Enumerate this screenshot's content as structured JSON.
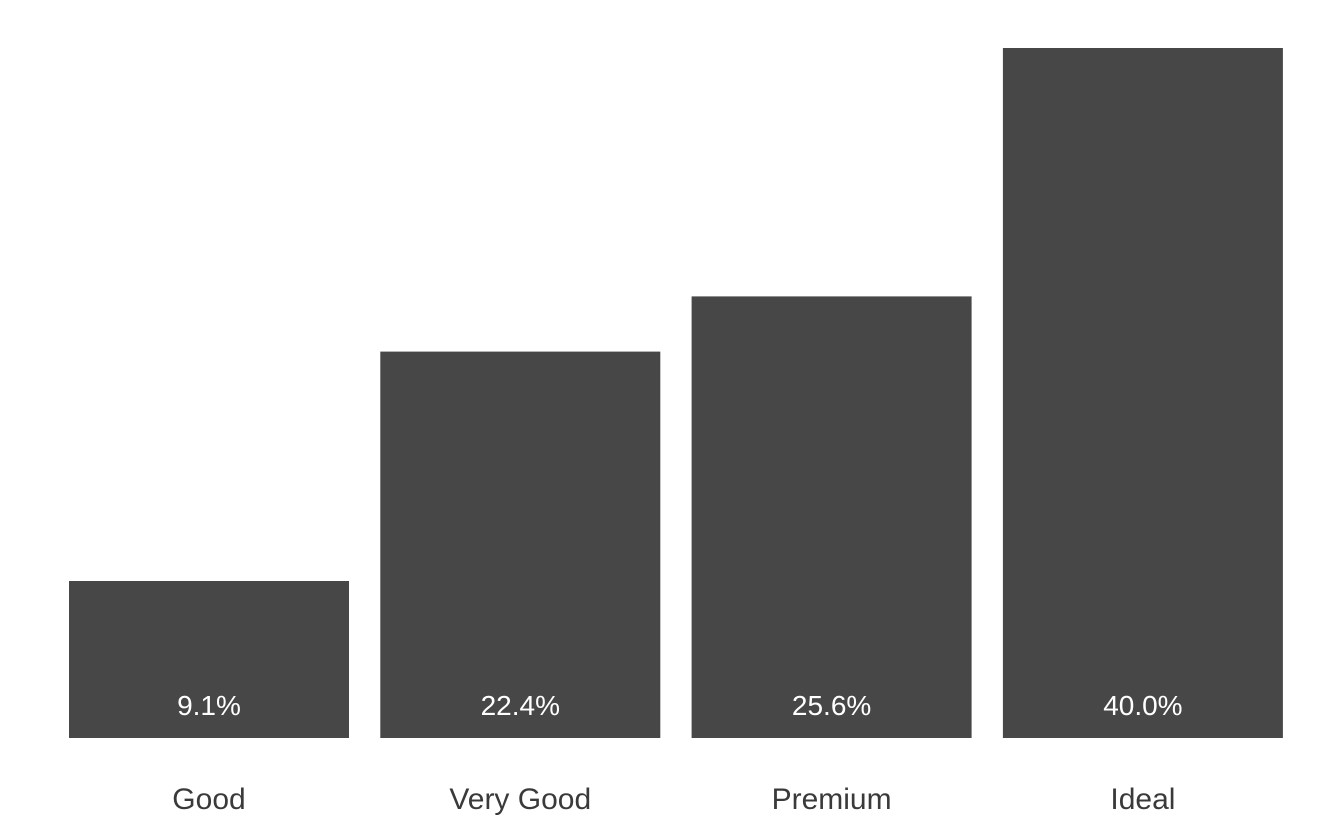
{
  "chart_data": {
    "type": "bar",
    "title": "",
    "xlabel": "",
    "ylabel": "",
    "categories": [
      "Good",
      "Very Good",
      "Premium",
      "Ideal"
    ],
    "values": [
      9.1,
      22.4,
      25.6,
      40.0
    ],
    "value_labels": [
      "9.1%",
      "22.4%",
      "25.6%",
      "40.0%"
    ],
    "unit": "%",
    "ylim": [
      0,
      40.0
    ],
    "grid": false,
    "legend": "none",
    "bar_color": "#474747",
    "label_color": "#ffffff",
    "tick_color": "#3a3a3a"
  }
}
